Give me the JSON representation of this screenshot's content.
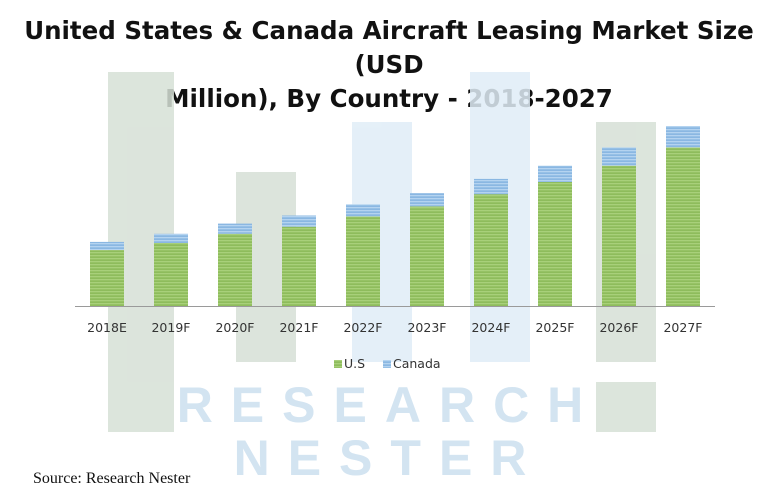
{
  "title_line1": "United States & Canada Aircraft Leasing Market Size (USD",
  "title_line2": "Million), By Country - 2018-2027",
  "source": "Source: Research Nester",
  "watermark": {
    "line1": "RESEARCH",
    "line2": "NESTER"
  },
  "colors": {
    "us": "#8ebc5c",
    "us_stripe": "#a8d07a",
    "canada": "#8ab7e2",
    "canada_stripe": "#b4d3f0",
    "watermark_gray": "#c9d6c9",
    "watermark_blue": "#dbe9f5",
    "axis": "#9a9a9a"
  },
  "chart_data": {
    "type": "bar",
    "stacked": true,
    "categories": [
      "2018E",
      "2019F",
      "2020F",
      "2021F",
      "2022F",
      "2023F",
      "2024F",
      "2025F",
      "2026F",
      "2027F"
    ],
    "series": [
      {
        "name": "U.S",
        "values": [
          55,
          62,
          71,
          78,
          88,
          98,
          110,
          122,
          138,
          156
        ]
      },
      {
        "name": "Canada",
        "values": [
          8,
          9,
          10,
          11,
          12,
          13,
          15,
          16,
          18,
          21
        ]
      }
    ],
    "ylim": [
      0,
      177
    ],
    "grid": false,
    "legend": "bottom"
  }
}
